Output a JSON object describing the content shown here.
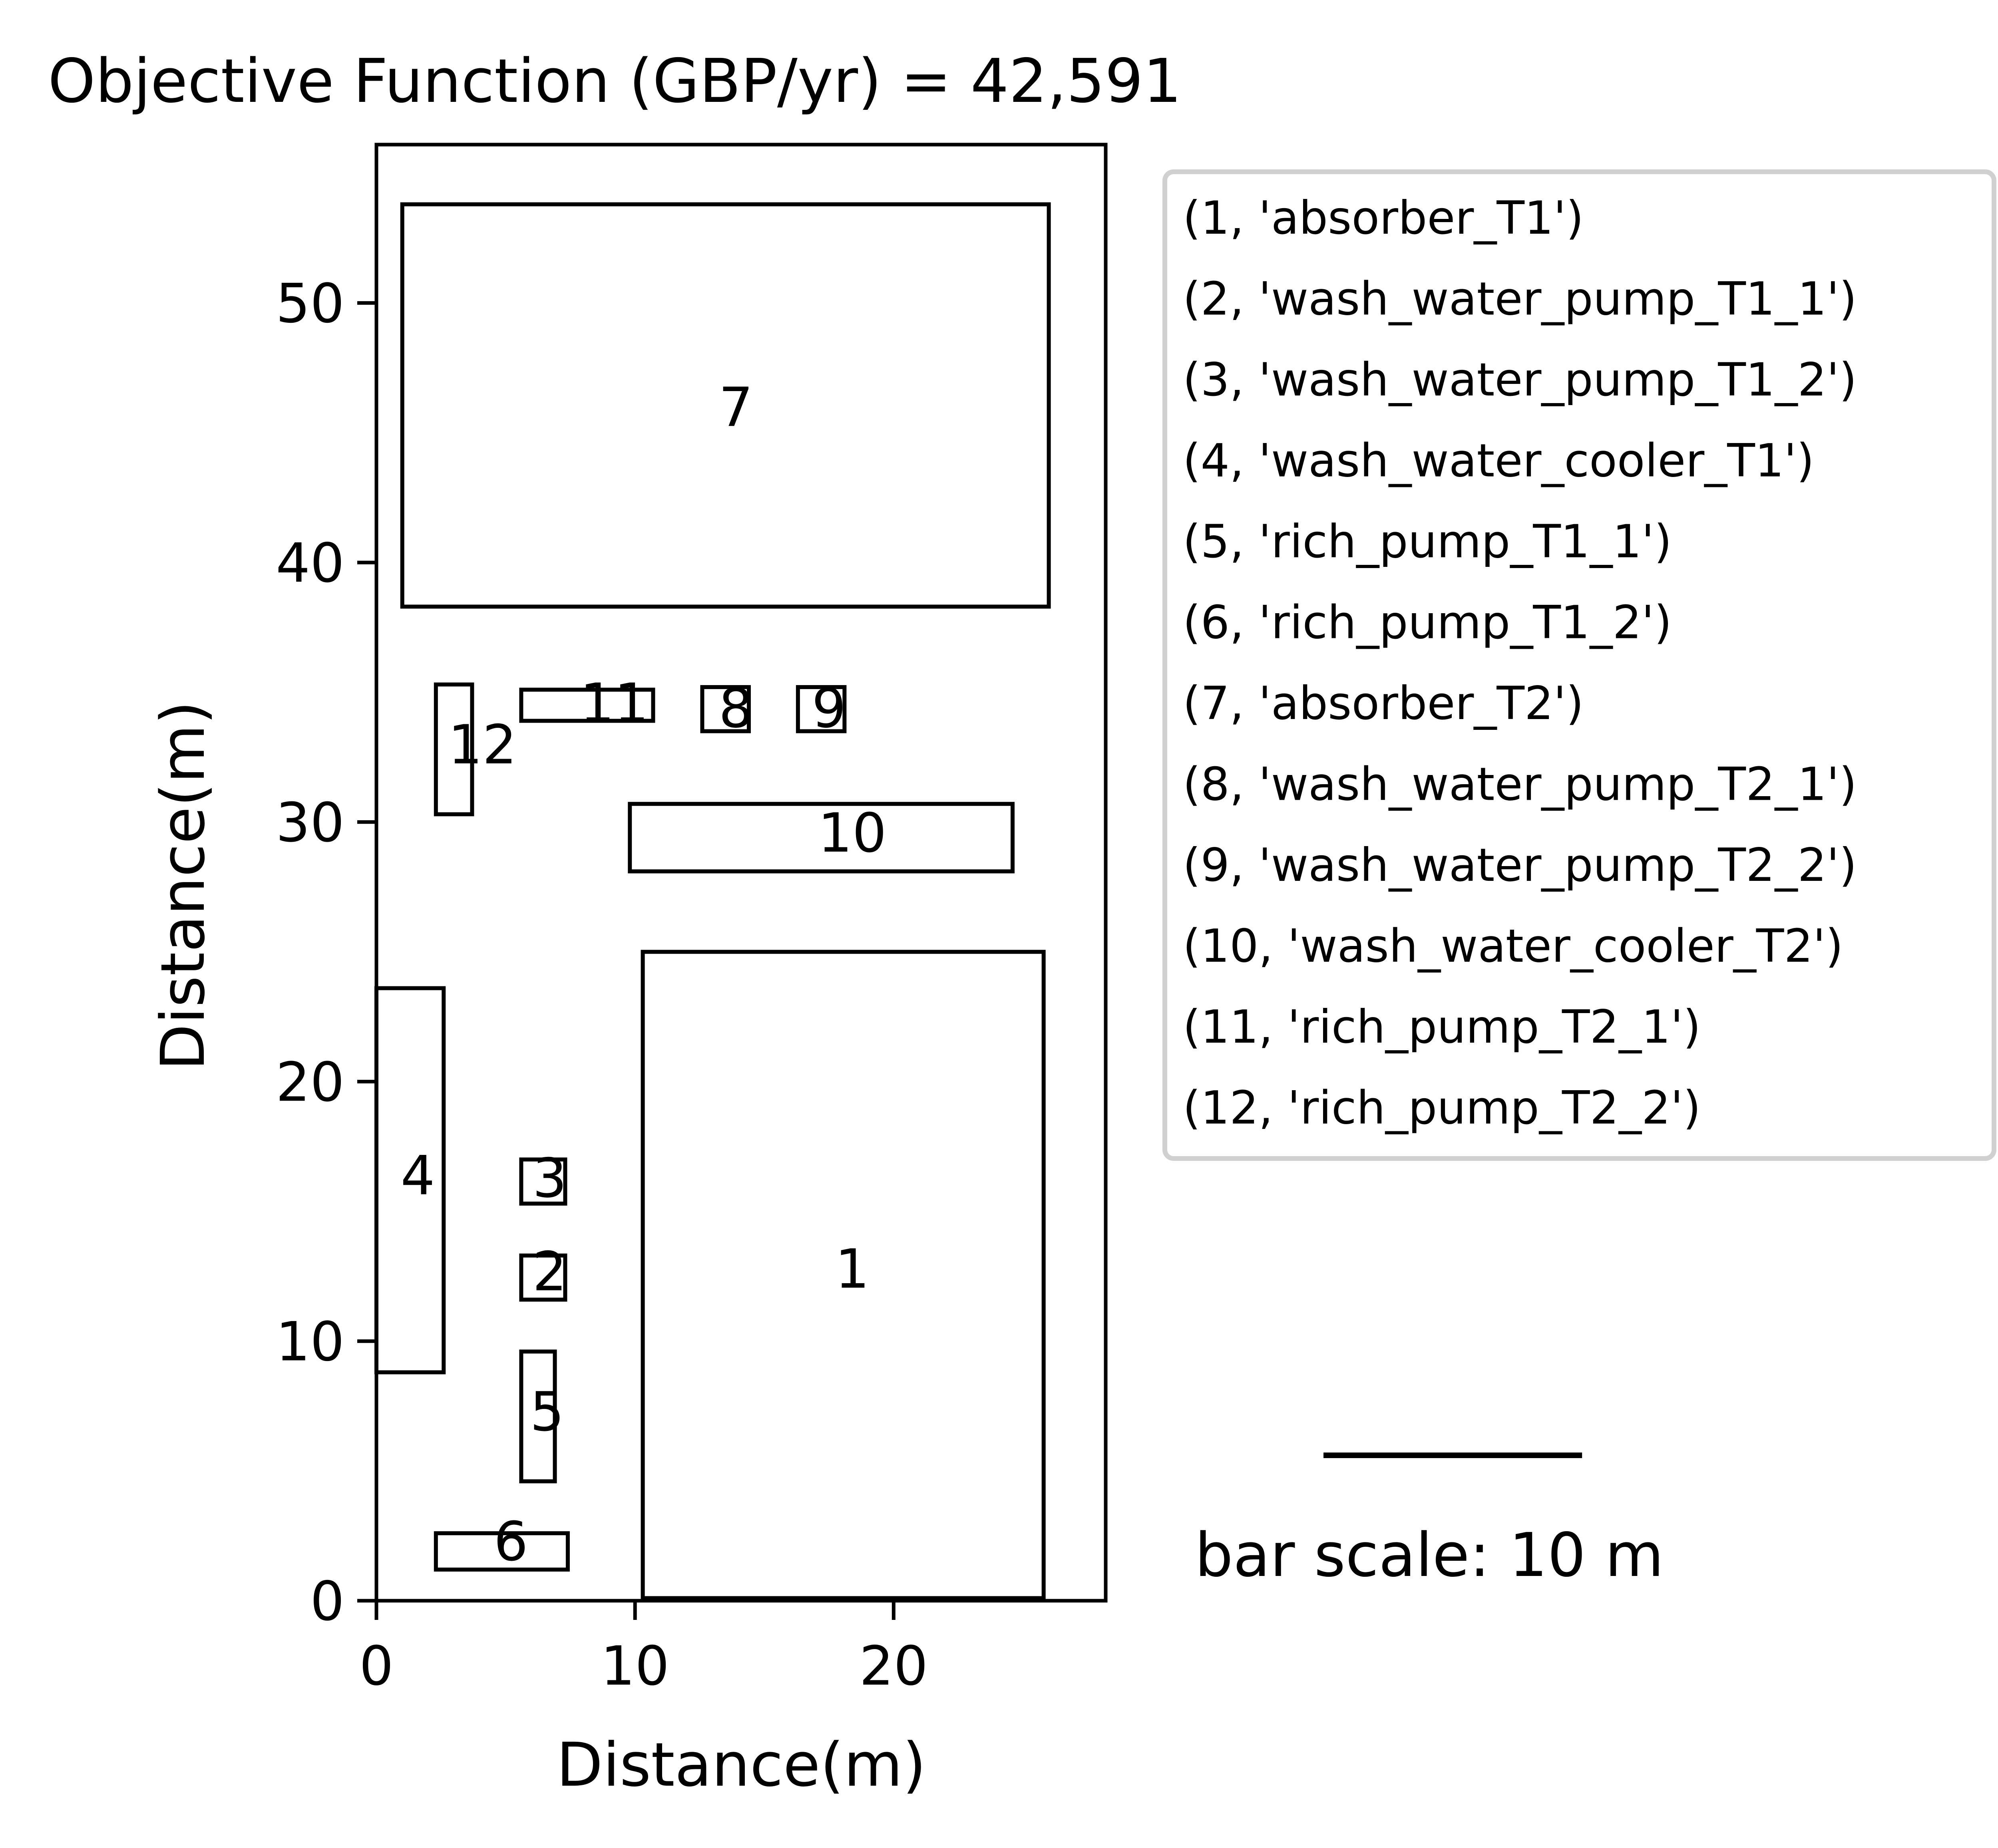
{
  "title": "Objective Function (GBP/yr) = 42,591",
  "chart_data": {
    "type": "layout",
    "xlabel": "Distance(m)",
    "ylabel": "Distance(m)",
    "xlim": [
      0,
      28.2
    ],
    "ylim": [
      0,
      56.1
    ],
    "xticks": [
      0,
      10,
      20
    ],
    "yticks": [
      0,
      10,
      20,
      30,
      40,
      50
    ],
    "grid": false,
    "legend_position": "right",
    "units": [
      {
        "id": "1",
        "name": "absorber_T1",
        "x0": 10.3,
        "y0": 0.1,
        "x1": 25.8,
        "y1": 25.0,
        "label_x": 18.4,
        "label_y": 12.8
      },
      {
        "id": "2",
        "name": "wash_water_pump_T1_1",
        "x0": 5.6,
        "y0": 11.6,
        "x1": 7.3,
        "y1": 13.3,
        "label_x": 6.7,
        "label_y": 12.7
      },
      {
        "id": "3",
        "name": "wash_water_pump_T1_2",
        "x0": 5.6,
        "y0": 15.3,
        "x1": 7.3,
        "y1": 17.0,
        "label_x": 6.7,
        "label_y": 16.3
      },
      {
        "id": "4",
        "name": "wash_water_cooler_T1",
        "x0": 0.0,
        "y0": 8.8,
        "x1": 2.6,
        "y1": 23.6,
        "label_x": 1.6,
        "label_y": 16.4
      },
      {
        "id": "5",
        "name": "rich_pump_T1_1",
        "x0": 5.6,
        "y0": 4.6,
        "x1": 6.9,
        "y1": 9.6,
        "label_x": 6.6,
        "label_y": 7.3
      },
      {
        "id": "6",
        "name": "rich_pump_T1_2",
        "x0": 2.3,
        "y0": 1.2,
        "x1": 7.4,
        "y1": 2.6,
        "label_x": 5.2,
        "label_y": 2.3
      },
      {
        "id": "7",
        "name": "absorber_T2",
        "x0": 1.0,
        "y0": 38.3,
        "x1": 26.0,
        "y1": 53.8,
        "label_x": 13.9,
        "label_y": 46.0
      },
      {
        "id": "8",
        "name": "wash_water_pump_T2_1",
        "x0": 12.6,
        "y0": 33.5,
        "x1": 14.4,
        "y1": 35.2,
        "label_x": 13.9,
        "label_y": 34.4
      },
      {
        "id": "9",
        "name": "wash_water_pump_T2_2",
        "x0": 16.3,
        "y0": 33.5,
        "x1": 18.1,
        "y1": 35.2,
        "label_x": 17.5,
        "label_y": 34.4
      },
      {
        "id": "10",
        "name": "wash_water_cooler_T2",
        "x0": 9.8,
        "y0": 28.1,
        "x1": 24.6,
        "y1": 30.7,
        "label_x": 18.4,
        "label_y": 29.6
      },
      {
        "id": "11",
        "name": "rich_pump_T2_1",
        "x0": 5.6,
        "y0": 33.9,
        "x1": 10.7,
        "y1": 35.1,
        "label_x": 9.2,
        "label_y": 34.6
      },
      {
        "id": "12",
        "name": "rich_pump_T2_2",
        "x0": 2.3,
        "y0": 30.3,
        "x1": 3.7,
        "y1": 35.3,
        "label_x": 4.1,
        "label_y": 33.0
      }
    ],
    "legend_entries": [
      "(1, 'absorber_T1')",
      "(2, 'wash_water_pump_T1_1')",
      "(3, 'wash_water_pump_T1_2')",
      "(4, 'wash_water_cooler_T1')",
      "(5, 'rich_pump_T1_1')",
      "(6, 'rich_pump_T1_2')",
      "(7, 'absorber_T2')",
      "(8, 'wash_water_pump_T2_1')",
      "(9, 'wash_water_pump_T2_2')",
      "(10, 'wash_water_cooler_T2')",
      "(11, 'rich_pump_T2_1')",
      "(12, 'rich_pump_T2_2')"
    ],
    "scale_bar": {
      "length": 10,
      "label": "bar scale: 10 m"
    }
  }
}
